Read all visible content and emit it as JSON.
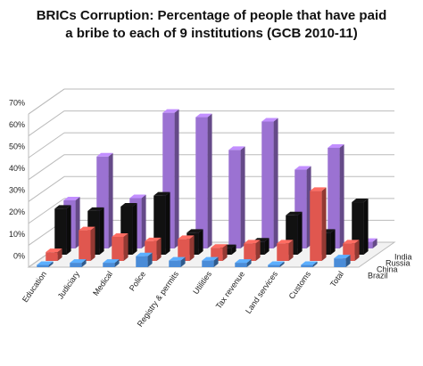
{
  "chart_data": {
    "type": "bar3d",
    "title_lines": [
      "BRICs Corruption: Percentage of people that have paid",
      "a bribe to each of 9 institutions (GCB 2010-11)"
    ],
    "categories": [
      "Education",
      "Judiciary",
      "Medical",
      "Police",
      "Registry & permits",
      "Utilities",
      "Tax revenue",
      "Land services",
      "Customs",
      "Total"
    ],
    "series": [
      {
        "name": "Brazil",
        "color": "#4a8cd8",
        "values": [
          1,
          2,
          2,
          5,
          3,
          3,
          2,
          1,
          1,
          4
        ]
      },
      {
        "name": "China",
        "color": "#e0574f",
        "values": [
          4,
          14,
          11,
          9,
          10,
          6,
          8,
          8,
          32,
          8
        ]
      },
      {
        "name": "Russia",
        "color": "#111111",
        "values": [
          21,
          20,
          22,
          27,
          10,
          3,
          6,
          18,
          10,
          24
        ]
      },
      {
        "name": "India",
        "color": "#9b72d2",
        "values": [
          22,
          42,
          23,
          62,
          60,
          45,
          58,
          36,
          46,
          3
        ]
      }
    ],
    "ylim": [
      0,
      70
    ],
    "yticks": [
      {
        "value": 0,
        "label": "0%"
      },
      {
        "value": 10,
        "label": "10%"
      },
      {
        "value": 20,
        "label": "20%"
      },
      {
        "value": 30,
        "label": "30%"
      },
      {
        "value": 40,
        "label": "40%"
      },
      {
        "value": 50,
        "label": "50%"
      },
      {
        "value": 60,
        "label": "60%"
      },
      {
        "value": 70,
        "label": "70%"
      }
    ],
    "grid": true
  }
}
